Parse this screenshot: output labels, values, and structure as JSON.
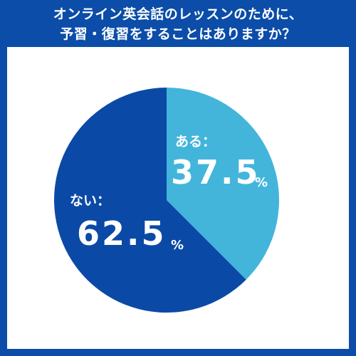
{
  "header": {
    "title_line1": "オンライン英会話のレッスンのために、",
    "title_line2": "予習・復習をすることはありますか？"
  },
  "chart_data": {
    "type": "pie",
    "categories": [
      "ある",
      "ない"
    ],
    "values": [
      37.5,
      62.5
    ],
    "unit": "%",
    "colors": [
      "#43B5DB",
      "#0A4AA6"
    ],
    "start_angle_deg": 0,
    "direction": "clockwise",
    "labels": [
      {
        "name": "ある：",
        "value": "37.5",
        "unit": "%"
      },
      {
        "name": "ない：",
        "value": "62.5",
        "unit": "%"
      }
    ]
  }
}
